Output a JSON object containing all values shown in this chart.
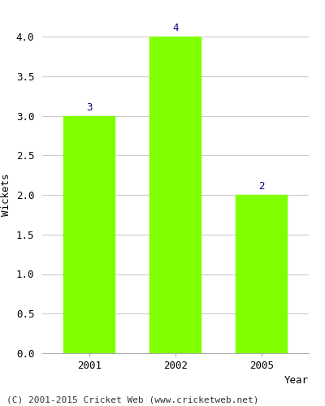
{
  "categories": [
    "2001",
    "2002",
    "2005"
  ],
  "values": [
    3,
    4,
    2
  ],
  "bar_color": "#7fff00",
  "bar_edge_color": "#7fff00",
  "label_color": "#000080",
  "label_fontsize": 9,
  "xlabel": "Year",
  "ylabel": "Wickets",
  "ylim": [
    0,
    4.0
  ],
  "yticks": [
    0.0,
    0.5,
    1.0,
    1.5,
    2.0,
    2.5,
    3.0,
    3.5,
    4.0
  ],
  "grid_color": "#cccccc",
  "background_color": "#ffffff",
  "footer_text": "(C) 2001-2015 Cricket Web (www.cricketweb.net)",
  "footer_fontsize": 8,
  "footer_color": "#333333",
  "axis_label_fontsize": 9,
  "tick_fontsize": 9,
  "bar_width": 0.6
}
